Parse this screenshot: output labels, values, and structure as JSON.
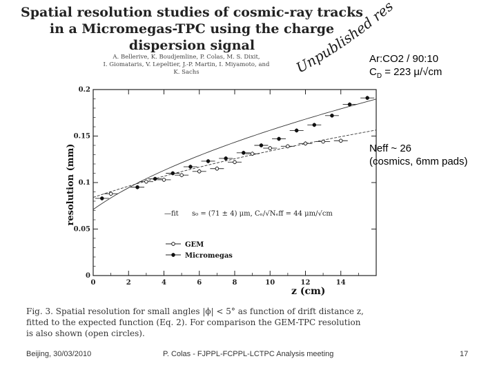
{
  "paper": {
    "title_line1": "Spatial resolution studies of cosmic-ray tracks",
    "title_line2": "in a Micromegas-TPC using the charge",
    "title_line3": "dispersion signal",
    "authors_line1": "A. Bellerive, K. Boudjemline, P. Colas, M. S. Dixit,",
    "authors_line2": "I. Giomataris, V. Lepeltier, J.-P. Martin, I. Miyamoto, and",
    "authors_line3": "K. Sachs",
    "caption_line1": "Fig. 3. Spatial resolution for small angles |ϕ| < 5° as function of drift distance z,",
    "caption_line2": "fitted to the expected function (Eq. 2). For comparison the GEM-TPC resolution",
    "caption_line3": "is also shown (open circles)."
  },
  "stamp": {
    "text": "Unpublished result",
    "color": "#1a1a1a"
  },
  "notes": {
    "gas": "Ar:CO2 / 90:10",
    "cd_prefix": "C",
    "cd_sub": "D",
    "cd_value": " = 223 μ/√cm",
    "neff_line1": "Neff ~ 26",
    "neff_line2": "(cosmics, 6mm pads)"
  },
  "footer": {
    "date": "Beijing, 30/03/2010",
    "event": "P. Colas  - FJPPL-FCPPL-LCTPC Analysis meeting",
    "page": "17"
  },
  "chart_data": {
    "type": "scatter",
    "xlabel": "z (cm)",
    "ylabel": "resolution (mm)",
    "xlim": [
      0,
      16
    ],
    "ylim": [
      0,
      0.2
    ],
    "x_ticks": [
      0,
      2,
      4,
      6,
      8,
      10,
      12,
      14
    ],
    "y_ticks": [
      0,
      0.05,
      0.1,
      0.15,
      0.2
    ],
    "y_tick_labels": [
      "0",
      "0.05",
      "0.1",
      "0.15",
      "0.2"
    ],
    "fit_label": "—fit",
    "fit_formula": "s₀ = (71 ± 4) μm, Cₙ/√Nₑff = 44 μm/√cm",
    "series": [
      {
        "name": "GEM",
        "marker": "open",
        "x": [
          1,
          3,
          4,
          5,
          6,
          7,
          8,
          9,
          10,
          11,
          12,
          13,
          14
        ],
        "y": [
          0.088,
          0.101,
          0.103,
          0.108,
          0.112,
          0.115,
          0.122,
          0.131,
          0.137,
          0.139,
          0.142,
          0.144,
          0.145
        ]
      },
      {
        "name": "Micromegas",
        "marker": "filled",
        "x": [
          0.5,
          2.5,
          3.5,
          4.5,
          5.5,
          6.5,
          7.5,
          8.5,
          9.5,
          10.5,
          11.5,
          12.5,
          13.5,
          14.5,
          15.5
        ],
        "y": [
          0.083,
          0.095,
          0.104,
          0.11,
          0.117,
          0.123,
          0.126,
          0.132,
          0.14,
          0.147,
          0.156,
          0.162,
          0.172,
          0.184,
          0.191
        ]
      }
    ],
    "fit_curves": [
      {
        "s0": 0.071,
        "c": 0.044
      },
      {
        "s0": 0.084,
        "c": 0.033
      }
    ]
  }
}
